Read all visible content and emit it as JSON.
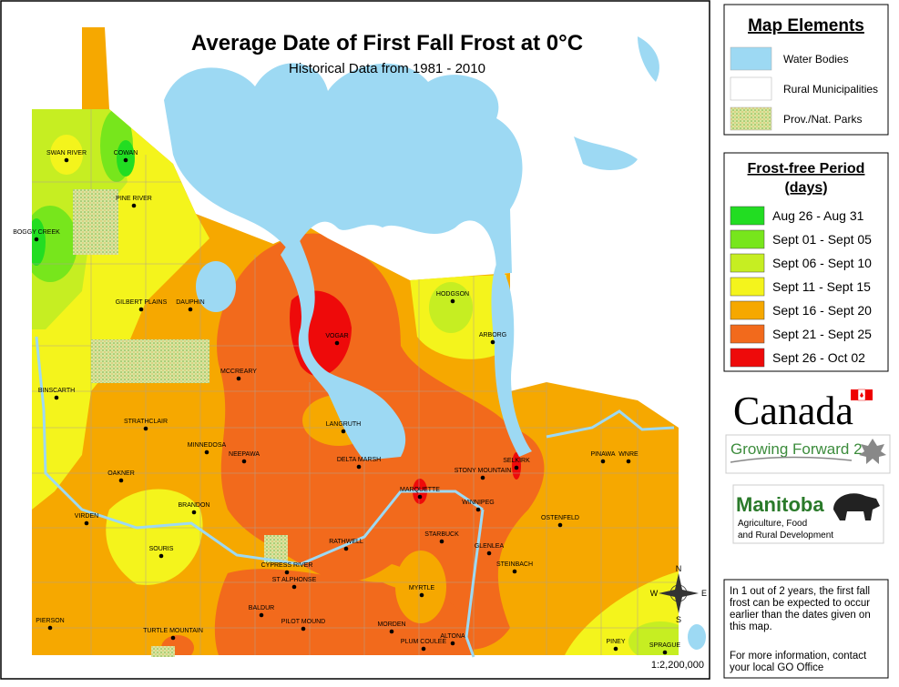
{
  "header": {
    "title": "Average Date of First Fall Frost at 0°C",
    "subtitle": "Historical Data from 1981 - 2010"
  },
  "map_elements": {
    "title": "Map Elements",
    "items": [
      {
        "label": "Water Bodies",
        "color": "#9dd9f3"
      },
      {
        "label": "Rural Municipalities",
        "color": "#ffffff"
      },
      {
        "label": "Prov./Nat. Parks",
        "color": "#d8e6a0"
      }
    ]
  },
  "frost_legend": {
    "title": "Frost-free Period",
    "subtitle": "(days)",
    "items": [
      {
        "label": "Aug 26 - Aug 31",
        "color": "#22dd22"
      },
      {
        "label": "Sept 01 - Sept 05",
        "color": "#77e61c"
      },
      {
        "label": "Sept 06 - Sept 10",
        "color": "#c6ee22"
      },
      {
        "label": "Sept 11 - Sept 15",
        "color": "#f4f41c"
      },
      {
        "label": "Sept 16 - Sept 20",
        "color": "#f6a800"
      },
      {
        "label": "Sept 21 - Sept 25",
        "color": "#f26a1c"
      },
      {
        "label": "Sept 26 - Oct 02",
        "color": "#ee0a0a"
      }
    ]
  },
  "towns": [
    "SWAN RIVER",
    "COWAN",
    "PINE RIVER",
    "BOGGY CREEK",
    "GILBERT PLAINS",
    "DAUPHIN",
    "VOGAR",
    "MCCREARY",
    "HODGSON",
    "ARBORG",
    "BINSCARTH",
    "STRATHCLAIR",
    "MINNEDOSA",
    "NEEPAWA",
    "LANGRUTH",
    "DELTA MARSH",
    "STONY MOUNTAIN",
    "SELKIRK",
    "PINAWA",
    "WNRE",
    "OAKNER",
    "BRANDON",
    "VIRDEN",
    "MARQUETTE",
    "WINNIPEG",
    "OSTENFELD",
    "SOURIS",
    "STARBUCK",
    "RATHWELL",
    "GLENLEA",
    "CYPRESS RIVER",
    "STEINBACH",
    "ST ALPHONSE",
    "MYRTLE",
    "BALDUR",
    "PILOT MOUND",
    "MORDEN",
    "ALTONA",
    "PLUM COULEE",
    "PIERSON",
    "TURTLE MOUNTAIN",
    "PINEY",
    "SPRAGUE"
  ],
  "compass": {
    "n": "N",
    "s": "S",
    "e": "E",
    "w": "W"
  },
  "scale": "1:2,200,000",
  "logos": {
    "canada": "Canada",
    "growing_forward": "Growing Forward 2",
    "manitoba": "Manitoba",
    "department": [
      "Agriculture, Food",
      "and Rural Development"
    ]
  },
  "note": {
    "lines": [
      "In 1 out of 2 years, the first fall",
      "frost can be expected to occur",
      "earlier than the dates given on",
      "this map."
    ],
    "contact": [
      "For more information, contact",
      "your local GO Office"
    ]
  }
}
